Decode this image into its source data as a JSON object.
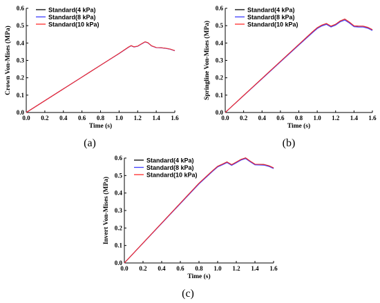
{
  "chart_data": [
    {
      "type": "line",
      "panel_label": "(a)",
      "xlabel": "Time (s)",
      "ylabel": "Crown Von-Mises (MPa)",
      "xlim": [
        0.0,
        1.6
      ],
      "ylim": [
        0.0,
        0.6
      ],
      "x_ticks": [
        "0.0",
        "0.2",
        "0.4",
        "0.6",
        "0.8",
        "1.0",
        "1.2",
        "1.4",
        "1.6"
      ],
      "y_ticks": [
        "0.0",
        "0.1",
        "0.2",
        "0.3",
        "0.4",
        "0.5",
        "0.6"
      ],
      "grid": false,
      "legend_position": "top-left",
      "x": [
        0.0,
        0.2,
        0.4,
        0.6,
        0.8,
        1.0,
        1.1,
        1.13,
        1.16,
        1.2,
        1.25,
        1.28,
        1.31,
        1.35,
        1.4,
        1.45,
        1.5,
        1.55,
        1.6
      ],
      "series": [
        {
          "name": "Standard(4 kPa)",
          "color": "#000000",
          "values": [
            0.0,
            0.068,
            0.136,
            0.204,
            0.272,
            0.34,
            0.376,
            0.385,
            0.378,
            0.382,
            0.398,
            0.407,
            0.402,
            0.384,
            0.374,
            0.373,
            0.37,
            0.365,
            0.356
          ]
        },
        {
          "name": "Standard(8 kPa)",
          "color": "#3b3bff",
          "values": [
            0.0,
            0.068,
            0.136,
            0.204,
            0.272,
            0.339,
            0.375,
            0.384,
            0.377,
            0.381,
            0.397,
            0.406,
            0.401,
            0.383,
            0.373,
            0.372,
            0.369,
            0.364,
            0.355
          ]
        },
        {
          "name": "Standard(10 kPa)",
          "color": "#ff2a2a",
          "values": [
            0.0,
            0.068,
            0.136,
            0.204,
            0.272,
            0.34,
            0.376,
            0.385,
            0.378,
            0.382,
            0.398,
            0.407,
            0.402,
            0.384,
            0.374,
            0.373,
            0.37,
            0.365,
            0.356
          ]
        }
      ]
    },
    {
      "type": "line",
      "panel_label": "(b)",
      "xlabel": "Time (s)",
      "ylabel": "Springline Von-Mises (MPa)",
      "xlim": [
        0.0,
        1.6
      ],
      "ylim": [
        0.0,
        0.6
      ],
      "x_ticks": [
        "0.0",
        "0.2",
        "0.4",
        "0.6",
        "0.8",
        "1.0",
        "1.2",
        "1.4",
        "1.6"
      ],
      "y_ticks": [
        "0.0",
        "0.1",
        "0.2",
        "0.3",
        "0.4",
        "0.5",
        "0.6"
      ],
      "grid": false,
      "legend_position": "top-left",
      "x": [
        0.0,
        0.2,
        0.4,
        0.6,
        0.8,
        0.95,
        1.0,
        1.05,
        1.1,
        1.15,
        1.2,
        1.25,
        1.3,
        1.35,
        1.4,
        1.45,
        1.5,
        1.55,
        1.6
      ],
      "series": [
        {
          "name": "Standard(4 kPa)",
          "color": "#000000",
          "values": [
            0.0,
            0.098,
            0.196,
            0.294,
            0.392,
            0.465,
            0.488,
            0.503,
            0.512,
            0.497,
            0.508,
            0.527,
            0.538,
            0.52,
            0.499,
            0.497,
            0.497,
            0.49,
            0.477
          ]
        },
        {
          "name": "Standard(8 kPa)",
          "color": "#3b3bff",
          "values": [
            0.0,
            0.097,
            0.194,
            0.291,
            0.388,
            0.46,
            0.483,
            0.498,
            0.507,
            0.492,
            0.503,
            0.522,
            0.532,
            0.515,
            0.494,
            0.492,
            0.492,
            0.485,
            0.472
          ]
        },
        {
          "name": "Standard(10 kPa)",
          "color": "#ff2a2a",
          "values": [
            0.0,
            0.098,
            0.196,
            0.294,
            0.392,
            0.465,
            0.488,
            0.503,
            0.512,
            0.497,
            0.508,
            0.527,
            0.538,
            0.52,
            0.499,
            0.497,
            0.497,
            0.49,
            0.477
          ]
        }
      ]
    },
    {
      "type": "line",
      "panel_label": "(c)",
      "xlabel": "Time (s)",
      "ylabel": "Invert Von-Mises (MPa)",
      "xlim": [
        0.0,
        1.6
      ],
      "ylim": [
        0.0,
        0.6
      ],
      "x_ticks": [
        "0.0",
        "0.2",
        "0.4",
        "0.6",
        "0.8",
        "1.0",
        "1.2",
        "1.4",
        "1.6"
      ],
      "y_ticks": [
        "0.0",
        "0.1",
        "0.2",
        "0.3",
        "0.4",
        "0.5",
        "0.6"
      ],
      "grid": false,
      "legend_position": "top-left",
      "x": [
        0.0,
        0.2,
        0.4,
        0.6,
        0.8,
        0.95,
        1.0,
        1.05,
        1.1,
        1.15,
        1.2,
        1.25,
        1.3,
        1.35,
        1.4,
        1.45,
        1.5,
        1.55,
        1.6
      ],
      "series": [
        {
          "name": "Standard(4 kPa)",
          "color": "#000000",
          "values": [
            0.0,
            0.114,
            0.228,
            0.342,
            0.456,
            0.53,
            0.553,
            0.565,
            0.578,
            0.562,
            0.577,
            0.592,
            0.601,
            0.582,
            0.565,
            0.564,
            0.563,
            0.556,
            0.544
          ]
        },
        {
          "name": "Standard(8 kPa)",
          "color": "#3b3bff",
          "values": [
            0.0,
            0.113,
            0.226,
            0.339,
            0.452,
            0.526,
            0.549,
            0.561,
            0.574,
            0.558,
            0.573,
            0.588,
            0.597,
            0.578,
            0.561,
            0.56,
            0.559,
            0.552,
            0.54
          ]
        },
        {
          "name": "Standard(10 kPa)",
          "color": "#ff2a2a",
          "values": [
            0.0,
            0.114,
            0.228,
            0.342,
            0.456,
            0.53,
            0.553,
            0.565,
            0.578,
            0.562,
            0.577,
            0.592,
            0.601,
            0.582,
            0.565,
            0.564,
            0.563,
            0.556,
            0.544
          ]
        }
      ]
    }
  ]
}
